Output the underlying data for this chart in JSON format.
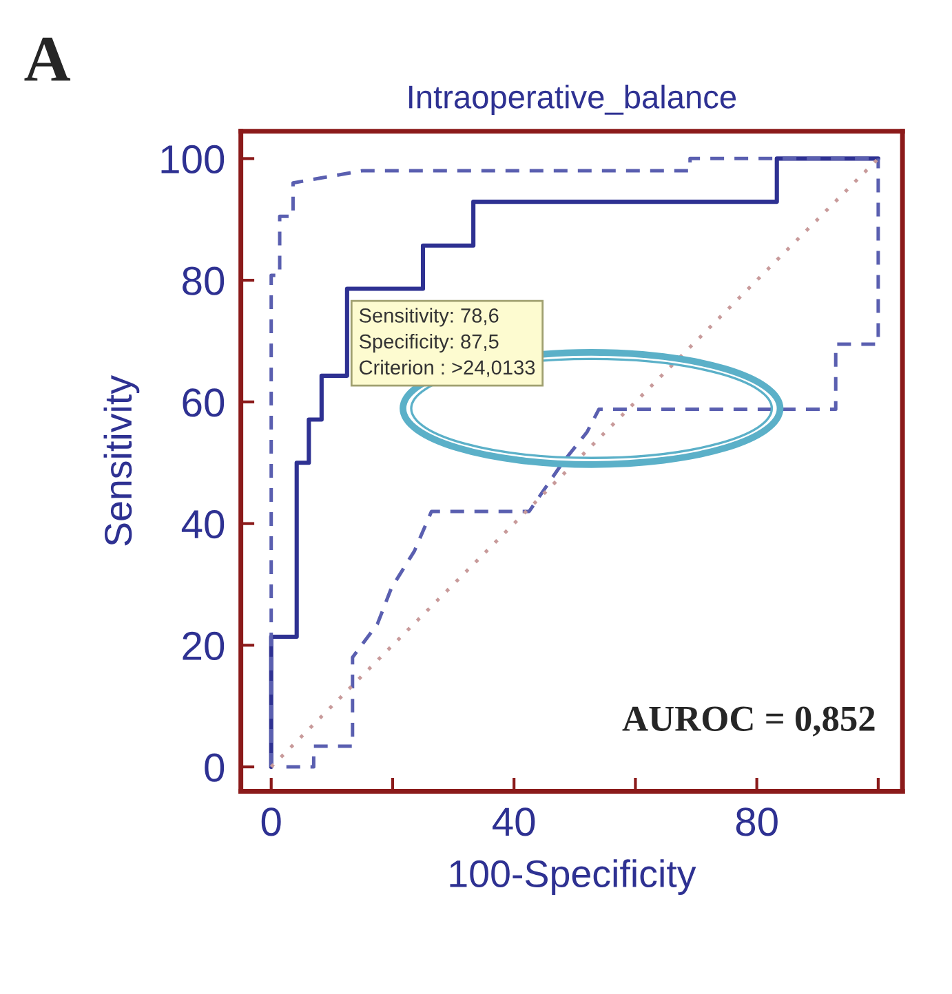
{
  "chart_data": {
    "type": "step",
    "title": "Intraoperative_balance",
    "xlabel": "100-Specificity",
    "ylabel": "Sensitivity",
    "series": [
      {
        "color": "#2e3192",
        "line_style": "solid",
        "x": [
          0,
          0,
          4.2,
          4.2,
          6.2,
          6.2,
          8.3,
          8.3,
          12.5,
          12.5,
          25,
          25,
          33.3,
          33.3,
          83.3,
          83.3,
          100
        ],
        "values": [
          0,
          21.4,
          21.4,
          50,
          50,
          57.1,
          57.1,
          64.3,
          64.3,
          78.6,
          78.6,
          85.7,
          85.7,
          92.9,
          92.9,
          100,
          100
        ]
      },
      {
        "type": "line",
        "color": "#5a5fb0",
        "line_style": "dashed",
        "x": [
          0,
          0,
          1.4,
          1.4,
          3.6,
          3.6,
          15,
          69,
          69,
          100
        ],
        "values": [
          0,
          80.8,
          80.8,
          90.5,
          90.5,
          96,
          98,
          98,
          100,
          100
        ]
      },
      {
        "type": "line",
        "color": "#5a5fb0",
        "line_style": "dashed",
        "x": [
          2.5,
          7,
          7,
          13.4,
          13.4,
          17.5,
          19.8,
          23.6,
          26.4,
          42.5,
          48,
          52,
          54,
          93,
          93,
          100,
          100
        ],
        "values": [
          0,
          0,
          3.4,
          3.4,
          18,
          23.5,
          29.4,
          35.5,
          42,
          42,
          50,
          55,
          58.8,
          58.8,
          69.5,
          69.5,
          100
        ]
      },
      {
        "type": "line",
        "color": "#c89a9a",
        "line_style": "dotted",
        "x": [
          0,
          100
        ],
        "values": [
          0,
          100
        ]
      }
    ],
    "xlim": [
      -5,
      104
    ],
    "ylim": [
      -4,
      104.5
    ],
    "xticks": [
      0,
      {
        "value": 20,
        "label": null
      },
      40,
      {
        "value": 60,
        "label": null
      },
      80,
      {
        "value": 100,
        "label": null
      }
    ],
    "yticks": [
      0,
      20,
      40,
      60,
      80,
      100
    ],
    "grid": false,
    "legend": false,
    "annotations": [
      "A",
      {
        "text": "Sensitivity: 78,6\nSpecificity: 87,5\nCriterion : >24,0133",
        "x": 12.5,
        "y": 78.6
      },
      "AUROC = 0,852"
    ]
  }
}
